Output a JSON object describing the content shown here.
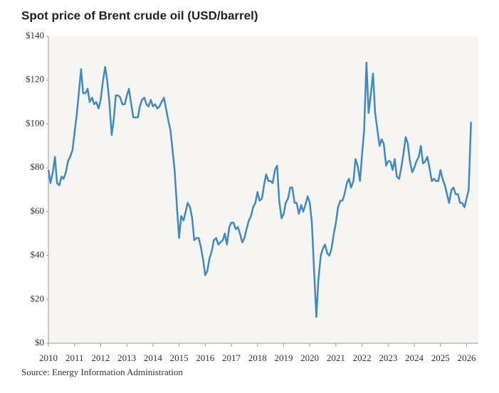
{
  "chart_data": {
    "type": "line",
    "title": "Spot price of Brent crude oil (USD/barrel)",
    "source": "Source: Energy Information Administration",
    "color": "#3d8ac7",
    "grid": false,
    "xlim": [
      2010,
      2026.45
    ],
    "xticks": [
      2010,
      2011,
      2012,
      2013,
      2014,
      2015,
      2016,
      2017,
      2018,
      2019,
      2020,
      2021,
      2022,
      2023,
      2024,
      2025,
      2026
    ],
    "ylim": [
      0,
      140
    ],
    "yticks": [
      {
        "value": 0,
        "label": "$0"
      },
      {
        "value": 20,
        "label": "$20"
      },
      {
        "value": 40,
        "label": "$40"
      },
      {
        "value": 60,
        "label": "$60"
      },
      {
        "value": 80,
        "label": "$80"
      },
      {
        "value": 100,
        "label": "$100"
      },
      {
        "value": 120,
        "label": "$120"
      },
      {
        "value": 140,
        "label": "$140"
      }
    ],
    "x": [
      2010,
      2010.08,
      2010.17,
      2010.25,
      2010.33,
      2010.42,
      2010.5,
      2010.58,
      2010.67,
      2010.75,
      2010.83,
      2010.92,
      2011,
      2011.08,
      2011.17,
      2011.25,
      2011.33,
      2011.42,
      2011.5,
      2011.58,
      2011.67,
      2011.75,
      2011.83,
      2011.92,
      2012,
      2012.08,
      2012.17,
      2012.25,
      2012.33,
      2012.42,
      2012.5,
      2012.58,
      2012.67,
      2012.75,
      2012.83,
      2012.92,
      2013,
      2013.08,
      2013.17,
      2013.25,
      2013.33,
      2013.42,
      2013.5,
      2013.58,
      2013.67,
      2013.75,
      2013.83,
      2013.92,
      2014,
      2014.08,
      2014.17,
      2014.25,
      2014.33,
      2014.42,
      2014.5,
      2014.58,
      2014.67,
      2014.75,
      2014.83,
      2014.92,
      2015,
      2015.08,
      2015.17,
      2015.25,
      2015.33,
      2015.42,
      2015.5,
      2015.58,
      2015.67,
      2015.75,
      2015.83,
      2015.92,
      2016,
      2016.08,
      2016.17,
      2016.25,
      2016.33,
      2016.42,
      2016.5,
      2016.58,
      2016.67,
      2016.75,
      2016.83,
      2016.92,
      2017,
      2017.08,
      2017.17,
      2017.25,
      2017.33,
      2017.42,
      2017.5,
      2017.58,
      2017.67,
      2017.75,
      2017.83,
      2017.92,
      2018,
      2018.08,
      2018.17,
      2018.25,
      2018.33,
      2018.42,
      2018.5,
      2018.58,
      2018.67,
      2018.75,
      2018.83,
      2018.92,
      2019,
      2019.08,
      2019.17,
      2019.25,
      2019.33,
      2019.42,
      2019.5,
      2019.58,
      2019.67,
      2019.75,
      2019.83,
      2019.92,
      2020,
      2020.08,
      2020.17,
      2020.25,
      2020.33,
      2020.42,
      2020.5,
      2020.58,
      2020.67,
      2020.75,
      2020.83,
      2020.92,
      2021,
      2021.08,
      2021.17,
      2021.25,
      2021.33,
      2021.42,
      2021.5,
      2021.58,
      2021.67,
      2021.75,
      2021.83,
      2021.92,
      2022,
      2022.08,
      2022.17,
      2022.25,
      2022.33,
      2022.42,
      2022.5,
      2022.58,
      2022.67,
      2022.75,
      2022.83,
      2022.92,
      2023,
      2023.08,
      2023.17,
      2023.25,
      2023.33,
      2023.42,
      2023.5,
      2023.58,
      2023.67,
      2023.75,
      2023.83,
      2023.92,
      2024,
      2024.08,
      2024.17,
      2024.25,
      2024.33,
      2024.42,
      2024.5,
      2024.58,
      2024.67,
      2024.75,
      2024.83,
      2024.92,
      2025,
      2025.08,
      2025.17,
      2025.25,
      2025.33,
      2025.42,
      2025.5,
      2025.58,
      2025.67,
      2025.75,
      2025.83,
      2025.92,
      2026,
      2026.08,
      2026.17
    ],
    "values": [
      79,
      73,
      78,
      85,
      73,
      72,
      76,
      75,
      78,
      83,
      85,
      88,
      96,
      104,
      115,
      125,
      114,
      114,
      116,
      110,
      112,
      109,
      110,
      107,
      111,
      119,
      126,
      120,
      110,
      95,
      102,
      113,
      113,
      112,
      109,
      109,
      113,
      116,
      109,
      103,
      103,
      103,
      108,
      111,
      112,
      109,
      108,
      111,
      108,
      109,
      107,
      108,
      110,
      112,
      107,
      102,
      97,
      88,
      79,
      62,
      48,
      58,
      56,
      60,
      64,
      62,
      57,
      47,
      48,
      48,
      44,
      38,
      31,
      33,
      39,
      42,
      47,
      48,
      45,
      46,
      47,
      50,
      45,
      53,
      55,
      55,
      52,
      53,
      50,
      46,
      48,
      52,
      56,
      58,
      62,
      64,
      69,
      65,
      66,
      72,
      77,
      74,
      74,
      73,
      79,
      81,
      65,
      57,
      59,
      64,
      66,
      71,
      71,
      64,
      64,
      59,
      63,
      60,
      63,
      67,
      64,
      55,
      32,
      12,
      29,
      40,
      43,
      45,
      41,
      40,
      43,
      50,
      55,
      62,
      65,
      65,
      68,
      73,
      75,
      71,
      74,
      84,
      81,
      74,
      86,
      97,
      128,
      105,
      113,
      123,
      105,
      98,
      90,
      93,
      91,
      81,
      83,
      83,
      79,
      84,
      76,
      75,
      80,
      86,
      94,
      91,
      83,
      78,
      80,
      83,
      85,
      90,
      82,
      83,
      85,
      80,
      74,
      75,
      74,
      74,
      79,
      75,
      72,
      68,
      64,
      70,
      71,
      68,
      68,
      64,
      64,
      62,
      66,
      70,
      101
    ]
  }
}
